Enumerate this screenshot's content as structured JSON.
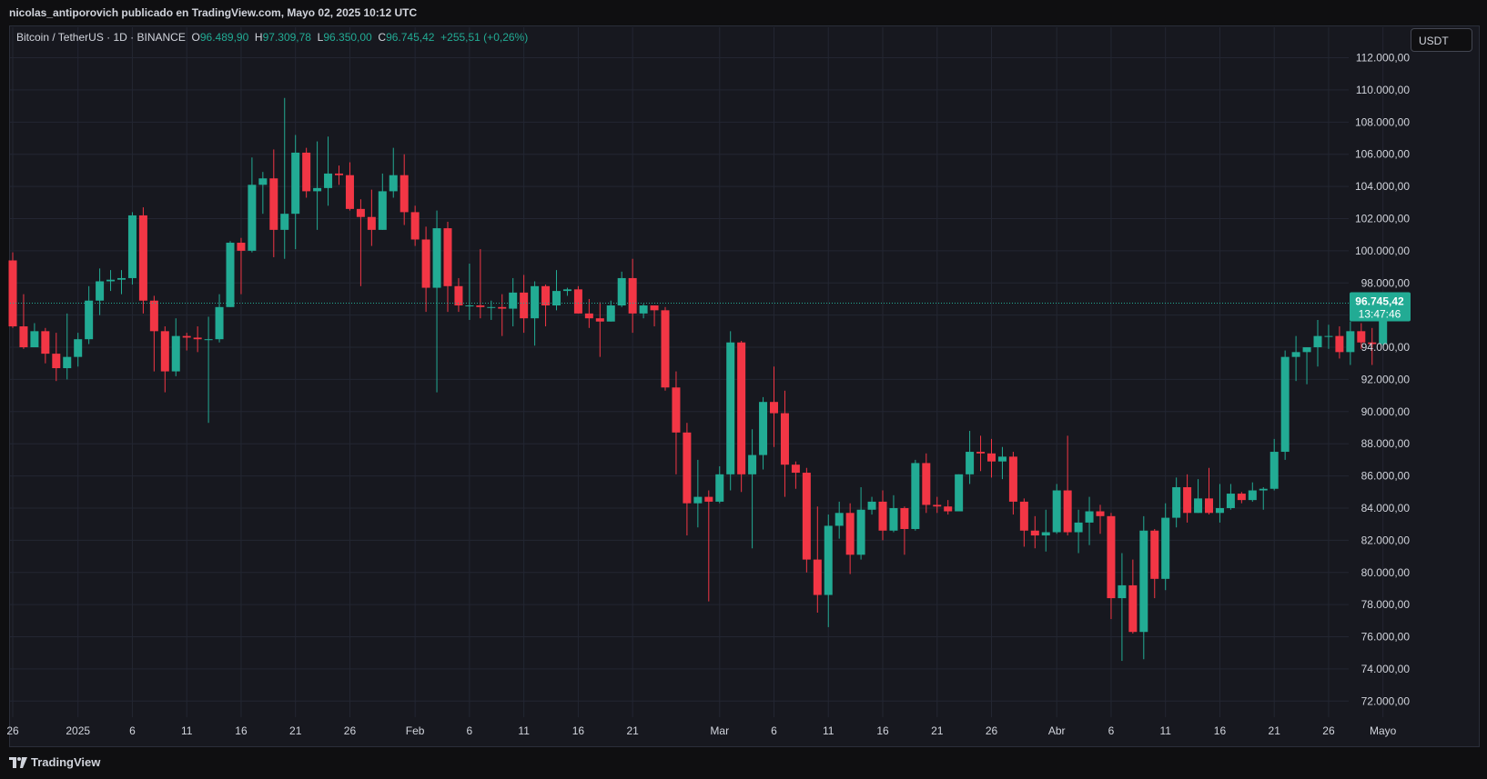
{
  "header": {
    "publisher": "nicolas_antiporovich publicado en TradingView.com, Mayo 02, 2025 10:12 UTC"
  },
  "symbol": {
    "name": "Bitcoin / TetherUS · 1D · BINANCE",
    "o_label": "O",
    "o": "96.489,90",
    "h_label": "H",
    "h": "97.309,78",
    "l_label": "L",
    "l": "96.350,00",
    "c_label": "C",
    "c": "96.745,42",
    "change": "+255,51 (+0,26%)"
  },
  "currency_button": "USDT",
  "price_badge": {
    "price": "96.745,42",
    "countdown": "13:47:46"
  },
  "footer": {
    "logo_text": "TradingView"
  },
  "colors": {
    "up": "#22ab94",
    "down": "#f23645",
    "background": "#17181f",
    "grid": "#232632",
    "axis_text": "#d1d4dc"
  },
  "chart_data": {
    "type": "candlestick",
    "current_price": 96745.42,
    "y_axis": {
      "ticks": [
        72000,
        74000,
        76000,
        78000,
        80000,
        82000,
        84000,
        86000,
        88000,
        90000,
        92000,
        94000,
        96000,
        98000,
        100000,
        102000,
        104000,
        106000,
        108000,
        110000,
        112000
      ],
      "tick_labels": [
        "72.000,00",
        "74.000,00",
        "76.000,00",
        "78.000,00",
        "80.000,00",
        "82.000,00",
        "84.000,00",
        "86.000,00",
        "88.000,00",
        "90.000,00",
        "92.000,00",
        "94.000,00",
        "96.000,00",
        "98.000,00",
        "100.000,00",
        "102.000,00",
        "104.000,00",
        "106.000,00",
        "108.000,00",
        "110.000,00",
        "112.000,00"
      ],
      "range": [
        71000,
        112200
      ],
      "hidden_ticks": [
        96000
      ]
    },
    "x_axis": {
      "ticks": [
        {
          "label": "26",
          "date": "2024-12-26"
        },
        {
          "label": "2025",
          "date": "2025-01-01"
        },
        {
          "label": "6",
          "date": "2025-01-06"
        },
        {
          "label": "11",
          "date": "2025-01-11"
        },
        {
          "label": "16",
          "date": "2025-01-16"
        },
        {
          "label": "21",
          "date": "2025-01-21"
        },
        {
          "label": "26",
          "date": "2025-01-26"
        },
        {
          "label": "Feb",
          "date": "2025-02-01"
        },
        {
          "label": "6",
          "date": "2025-02-06"
        },
        {
          "label": "11",
          "date": "2025-02-11"
        },
        {
          "label": "16",
          "date": "2025-02-16"
        },
        {
          "label": "21",
          "date": "2025-02-21"
        },
        {
          "label": "Mar",
          "date": "2025-03-01"
        },
        {
          "label": "6",
          "date": "2025-03-06"
        },
        {
          "label": "11",
          "date": "2025-03-11"
        },
        {
          "label": "16",
          "date": "2025-03-16"
        },
        {
          "label": "21",
          "date": "2025-03-21"
        },
        {
          "label": "26",
          "date": "2025-03-26"
        },
        {
          "label": "Abr",
          "date": "2025-04-01"
        },
        {
          "label": "6",
          "date": "2025-04-06"
        },
        {
          "label": "11",
          "date": "2025-04-11"
        },
        {
          "label": "16",
          "date": "2025-04-16"
        },
        {
          "label": "21",
          "date": "2025-04-21"
        },
        {
          "label": "26",
          "date": "2025-04-26"
        },
        {
          "label": "Mayo",
          "date": "2025-05-01"
        }
      ]
    },
    "candles": [
      {
        "date": "2024-12-26",
        "o": 99400,
        "h": 99900,
        "l": 95200,
        "c": 95300
      },
      {
        "date": "2024-12-27",
        "o": 95300,
        "h": 97300,
        "l": 93900,
        "c": 94000
      },
      {
        "date": "2024-12-28",
        "o": 94000,
        "h": 95500,
        "l": 94000,
        "c": 95000
      },
      {
        "date": "2024-12-29",
        "o": 95000,
        "h": 95200,
        "l": 93000,
        "c": 93600
      },
      {
        "date": "2024-12-30",
        "o": 93600,
        "h": 94900,
        "l": 91900,
        "c": 92700
      },
      {
        "date": "2024-12-31",
        "o": 92700,
        "h": 96100,
        "l": 92000,
        "c": 93400
      },
      {
        "date": "2025-01-01",
        "o": 93400,
        "h": 94900,
        "l": 92800,
        "c": 94500
      },
      {
        "date": "2025-01-02",
        "o": 94500,
        "h": 97800,
        "l": 94200,
        "c": 96900
      },
      {
        "date": "2025-01-03",
        "o": 96900,
        "h": 98900,
        "l": 96000,
        "c": 98100
      },
      {
        "date": "2025-01-04",
        "o": 98100,
        "h": 98800,
        "l": 97500,
        "c": 98200
      },
      {
        "date": "2025-01-05",
        "o": 98200,
        "h": 98800,
        "l": 97300,
        "c": 98300
      },
      {
        "date": "2025-01-06",
        "o": 98300,
        "h": 102400,
        "l": 97900,
        "c": 102200
      },
      {
        "date": "2025-01-07",
        "o": 102200,
        "h": 102700,
        "l": 96100,
        "c": 96900
      },
      {
        "date": "2025-01-08",
        "o": 96900,
        "h": 97200,
        "l": 92500,
        "c": 95000
      },
      {
        "date": "2025-01-09",
        "o": 95000,
        "h": 95300,
        "l": 91200,
        "c": 92500
      },
      {
        "date": "2025-01-10",
        "o": 92500,
        "h": 95800,
        "l": 92200,
        "c": 94700
      },
      {
        "date": "2025-01-11",
        "o": 94700,
        "h": 94900,
        "l": 93800,
        "c": 94600
      },
      {
        "date": "2025-01-12",
        "o": 94600,
        "h": 95300,
        "l": 93700,
        "c": 94500
      },
      {
        "date": "2025-01-13",
        "o": 94500,
        "h": 95900,
        "l": 89300,
        "c": 94500
      },
      {
        "date": "2025-01-14",
        "o": 94500,
        "h": 97300,
        "l": 94300,
        "c": 96500
      },
      {
        "date": "2025-01-15",
        "o": 96500,
        "h": 100600,
        "l": 96500,
        "c": 100500
      },
      {
        "date": "2025-01-16",
        "o": 100500,
        "h": 100800,
        "l": 97300,
        "c": 100000
      },
      {
        "date": "2025-01-17",
        "o": 100000,
        "h": 105800,
        "l": 99900,
        "c": 104100
      },
      {
        "date": "2025-01-18",
        "o": 104100,
        "h": 104900,
        "l": 102300,
        "c": 104500
      },
      {
        "date": "2025-01-19",
        "o": 104500,
        "h": 106300,
        "l": 99600,
        "c": 101300
      },
      {
        "date": "2025-01-20",
        "o": 101300,
        "h": 109500,
        "l": 99500,
        "c": 102300
      },
      {
        "date": "2025-01-21",
        "o": 102300,
        "h": 107200,
        "l": 100100,
        "c": 106100
      },
      {
        "date": "2025-01-22",
        "o": 106100,
        "h": 106400,
        "l": 103300,
        "c": 103700
      },
      {
        "date": "2025-01-23",
        "o": 103700,
        "h": 106800,
        "l": 101300,
        "c": 103900
      },
      {
        "date": "2025-01-24",
        "o": 103900,
        "h": 107100,
        "l": 102800,
        "c": 104800
      },
      {
        "date": "2025-01-25",
        "o": 104800,
        "h": 105300,
        "l": 104100,
        "c": 104700
      },
      {
        "date": "2025-01-26",
        "o": 104700,
        "h": 105500,
        "l": 102500,
        "c": 102600
      },
      {
        "date": "2025-01-27",
        "o": 102600,
        "h": 103200,
        "l": 97800,
        "c": 102100
      },
      {
        "date": "2025-01-28",
        "o": 102100,
        "h": 103800,
        "l": 100300,
        "c": 101300
      },
      {
        "date": "2025-01-29",
        "o": 101300,
        "h": 104800,
        "l": 101300,
        "c": 103700
      },
      {
        "date": "2025-01-30",
        "o": 103700,
        "h": 106400,
        "l": 103300,
        "c": 104700
      },
      {
        "date": "2025-01-31",
        "o": 104700,
        "h": 106000,
        "l": 101600,
        "c": 102400
      },
      {
        "date": "2025-02-01",
        "o": 102400,
        "h": 102800,
        "l": 100300,
        "c": 100700
      },
      {
        "date": "2025-02-02",
        "o": 100700,
        "h": 101500,
        "l": 96200,
        "c": 97700
      },
      {
        "date": "2025-02-03",
        "o": 97700,
        "h": 102500,
        "l": 91200,
        "c": 101400
      },
      {
        "date": "2025-02-04",
        "o": 101400,
        "h": 101800,
        "l": 96200,
        "c": 97800
      },
      {
        "date": "2025-02-05",
        "o": 97800,
        "h": 98300,
        "l": 96200,
        "c": 96600
      },
      {
        "date": "2025-02-06",
        "o": 96600,
        "h": 99200,
        "l": 95700,
        "c": 96600
      },
      {
        "date": "2025-02-07",
        "o": 96600,
        "h": 100100,
        "l": 95800,
        "c": 96500
      },
      {
        "date": "2025-02-08",
        "o": 96500,
        "h": 96900,
        "l": 95700,
        "c": 96500
      },
      {
        "date": "2025-02-09",
        "o": 96500,
        "h": 97300,
        "l": 94700,
        "c": 96400
      },
      {
        "date": "2025-02-10",
        "o": 96400,
        "h": 98300,
        "l": 95300,
        "c": 97400
      },
      {
        "date": "2025-02-11",
        "o": 97400,
        "h": 98500,
        "l": 94900,
        "c": 95800
      },
      {
        "date": "2025-02-12",
        "o": 95800,
        "h": 98100,
        "l": 94100,
        "c": 97800
      },
      {
        "date": "2025-02-13",
        "o": 97800,
        "h": 97900,
        "l": 95300,
        "c": 96600
      },
      {
        "date": "2025-02-14",
        "o": 96600,
        "h": 98800,
        "l": 96300,
        "c": 97500
      },
      {
        "date": "2025-02-15",
        "o": 97500,
        "h": 97700,
        "l": 97200,
        "c": 97600
      },
      {
        "date": "2025-02-16",
        "o": 97600,
        "h": 97800,
        "l": 96100,
        "c": 96100
      },
      {
        "date": "2025-02-17",
        "o": 96100,
        "h": 97000,
        "l": 95200,
        "c": 95800
      },
      {
        "date": "2025-02-18",
        "o": 95800,
        "h": 96800,
        "l": 93400,
        "c": 95600
      },
      {
        "date": "2025-02-19",
        "o": 95600,
        "h": 96900,
        "l": 95600,
        "c": 96600
      },
      {
        "date": "2025-02-20",
        "o": 96600,
        "h": 98700,
        "l": 96500,
        "c": 98300
      },
      {
        "date": "2025-02-21",
        "o": 98300,
        "h": 99500,
        "l": 94900,
        "c": 96100
      },
      {
        "date": "2025-02-22",
        "o": 96100,
        "h": 96700,
        "l": 95800,
        "c": 96600
      },
      {
        "date": "2025-02-23",
        "o": 96600,
        "h": 96600,
        "l": 95300,
        "c": 96300
      },
      {
        "date": "2025-02-24",
        "o": 96300,
        "h": 96500,
        "l": 91300,
        "c": 91500
      },
      {
        "date": "2025-02-25",
        "o": 91500,
        "h": 92500,
        "l": 86100,
        "c": 88700
      },
      {
        "date": "2025-02-26",
        "o": 88700,
        "h": 89300,
        "l": 82300,
        "c": 84300
      },
      {
        "date": "2025-02-27",
        "o": 84300,
        "h": 87000,
        "l": 82800,
        "c": 84700
      },
      {
        "date": "2025-02-28",
        "o": 84700,
        "h": 85100,
        "l": 78200,
        "c": 84400
      },
      {
        "date": "2025-03-01",
        "o": 84400,
        "h": 86600,
        "l": 84300,
        "c": 86100
      },
      {
        "date": "2025-03-02",
        "o": 86100,
        "h": 95000,
        "l": 85100,
        "c": 94300
      },
      {
        "date": "2025-03-03",
        "o": 94300,
        "h": 94400,
        "l": 85000,
        "c": 86100
      },
      {
        "date": "2025-03-04",
        "o": 86100,
        "h": 88900,
        "l": 81500,
        "c": 87300
      },
      {
        "date": "2025-03-05",
        "o": 87300,
        "h": 90900,
        "l": 86400,
        "c": 90600
      },
      {
        "date": "2025-03-06",
        "o": 90600,
        "h": 92800,
        "l": 87800,
        "c": 89900
      },
      {
        "date": "2025-03-07",
        "o": 89900,
        "h": 91300,
        "l": 84700,
        "c": 86700
      },
      {
        "date": "2025-03-08",
        "o": 86700,
        "h": 86900,
        "l": 85200,
        "c": 86200
      },
      {
        "date": "2025-03-09",
        "o": 86200,
        "h": 86500,
        "l": 80000,
        "c": 80800
      },
      {
        "date": "2025-03-10",
        "o": 80800,
        "h": 84100,
        "l": 77500,
        "c": 78600
      },
      {
        "date": "2025-03-11",
        "o": 78600,
        "h": 83600,
        "l": 76600,
        "c": 82900
      },
      {
        "date": "2025-03-12",
        "o": 82900,
        "h": 84400,
        "l": 82100,
        "c": 83700
      },
      {
        "date": "2025-03-13",
        "o": 83700,
        "h": 84300,
        "l": 79900,
        "c": 81100
      },
      {
        "date": "2025-03-14",
        "o": 81100,
        "h": 85300,
        "l": 80800,
        "c": 83900
      },
      {
        "date": "2025-03-15",
        "o": 83900,
        "h": 84700,
        "l": 83600,
        "c": 84400
      },
      {
        "date": "2025-03-16",
        "o": 84400,
        "h": 85100,
        "l": 82000,
        "c": 82600
      },
      {
        "date": "2025-03-17",
        "o": 82600,
        "h": 84800,
        "l": 82500,
        "c": 84000
      },
      {
        "date": "2025-03-18",
        "o": 84000,
        "h": 84100,
        "l": 81100,
        "c": 82700
      },
      {
        "date": "2025-03-19",
        "o": 82700,
        "h": 87000,
        "l": 82600,
        "c": 86800
      },
      {
        "date": "2025-03-20",
        "o": 86800,
        "h": 87400,
        "l": 83700,
        "c": 84200
      },
      {
        "date": "2025-03-21",
        "o": 84200,
        "h": 84700,
        "l": 83700,
        "c": 84100
      },
      {
        "date": "2025-03-22",
        "o": 84100,
        "h": 84500,
        "l": 83600,
        "c": 83800
      },
      {
        "date": "2025-03-23",
        "o": 83800,
        "h": 86100,
        "l": 83800,
        "c": 86100
      },
      {
        "date": "2025-03-24",
        "o": 86100,
        "h": 88800,
        "l": 85500,
        "c": 87500
      },
      {
        "date": "2025-03-25",
        "o": 87500,
        "h": 88500,
        "l": 86300,
        "c": 87400
      },
      {
        "date": "2025-03-26",
        "o": 87400,
        "h": 88300,
        "l": 85900,
        "c": 86900
      },
      {
        "date": "2025-03-27",
        "o": 86900,
        "h": 87800,
        "l": 85800,
        "c": 87200
      },
      {
        "date": "2025-03-28",
        "o": 87200,
        "h": 87500,
        "l": 83600,
        "c": 84400
      },
      {
        "date": "2025-03-29",
        "o": 84400,
        "h": 84600,
        "l": 81600,
        "c": 82600
      },
      {
        "date": "2025-03-30",
        "o": 82600,
        "h": 83500,
        "l": 81500,
        "c": 82300
      },
      {
        "date": "2025-03-31",
        "o": 82300,
        "h": 83900,
        "l": 81300,
        "c": 82500
      },
      {
        "date": "2025-04-01",
        "o": 82500,
        "h": 85500,
        "l": 82400,
        "c": 85100
      },
      {
        "date": "2025-04-02",
        "o": 85100,
        "h": 88500,
        "l": 82300,
        "c": 82500
      },
      {
        "date": "2025-04-03",
        "o": 82500,
        "h": 83900,
        "l": 81200,
        "c": 83100
      },
      {
        "date": "2025-04-04",
        "o": 83100,
        "h": 84700,
        "l": 81700,
        "c": 83800
      },
      {
        "date": "2025-04-05",
        "o": 83800,
        "h": 84200,
        "l": 82400,
        "c": 83500
      },
      {
        "date": "2025-04-06",
        "o": 83500,
        "h": 83700,
        "l": 77100,
        "c": 78400
      },
      {
        "date": "2025-04-07",
        "o": 78400,
        "h": 81200,
        "l": 74500,
        "c": 79200
      },
      {
        "date": "2025-04-08",
        "o": 79200,
        "h": 80800,
        "l": 76200,
        "c": 76300
      },
      {
        "date": "2025-04-09",
        "o": 76300,
        "h": 83500,
        "l": 74600,
        "c": 82600
      },
      {
        "date": "2025-04-10",
        "o": 82600,
        "h": 82700,
        "l": 78400,
        "c": 79600
      },
      {
        "date": "2025-04-11",
        "o": 79600,
        "h": 84300,
        "l": 78900,
        "c": 83400
      },
      {
        "date": "2025-04-12",
        "o": 83400,
        "h": 85900,
        "l": 82800,
        "c": 85300
      },
      {
        "date": "2025-04-13",
        "o": 85300,
        "h": 86100,
        "l": 83100,
        "c": 83700
      },
      {
        "date": "2025-04-14",
        "o": 83700,
        "h": 85800,
        "l": 83700,
        "c": 84600
      },
      {
        "date": "2025-04-15",
        "o": 84600,
        "h": 86500,
        "l": 83600,
        "c": 83700
      },
      {
        "date": "2025-04-16",
        "o": 83700,
        "h": 85500,
        "l": 83100,
        "c": 84000
      },
      {
        "date": "2025-04-17",
        "o": 84000,
        "h": 85500,
        "l": 83900,
        "c": 84900
      },
      {
        "date": "2025-04-18",
        "o": 84900,
        "h": 85000,
        "l": 84300,
        "c": 84500
      },
      {
        "date": "2025-04-19",
        "o": 84500,
        "h": 85600,
        "l": 84400,
        "c": 85100
      },
      {
        "date": "2025-04-20",
        "o": 85100,
        "h": 85300,
        "l": 83900,
        "c": 85200
      },
      {
        "date": "2025-04-21",
        "o": 85200,
        "h": 88300,
        "l": 85100,
        "c": 87500
      },
      {
        "date": "2025-04-22",
        "o": 87500,
        "h": 93800,
        "l": 87000,
        "c": 93400
      },
      {
        "date": "2025-04-23",
        "o": 93400,
        "h": 94700,
        "l": 91900,
        "c": 93700
      },
      {
        "date": "2025-04-24",
        "o": 93700,
        "h": 94000,
        "l": 91700,
        "c": 94000
      },
      {
        "date": "2025-04-25",
        "o": 94000,
        "h": 95700,
        "l": 92800,
        "c": 94700
      },
      {
        "date": "2025-04-26",
        "o": 94700,
        "h": 95400,
        "l": 93900,
        "c": 94700
      },
      {
        "date": "2025-04-27",
        "o": 94700,
        "h": 95300,
        "l": 93300,
        "c": 93700
      },
      {
        "date": "2025-04-28",
        "o": 93700,
        "h": 95600,
        "l": 92900,
        "c": 95000
      },
      {
        "date": "2025-04-29",
        "o": 95000,
        "h": 95500,
        "l": 93900,
        "c": 94300
      },
      {
        "date": "2025-04-30",
        "o": 94300,
        "h": 95200,
        "l": 92900,
        "c": 94200
      },
      {
        "date": "2025-05-01",
        "o": 94200,
        "h": 97400,
        "l": 94100,
        "c": 96500
      },
      {
        "date": "2025-05-02",
        "o": 96490,
        "h": 97310,
        "l": 96350,
        "c": 96745
      }
    ]
  }
}
